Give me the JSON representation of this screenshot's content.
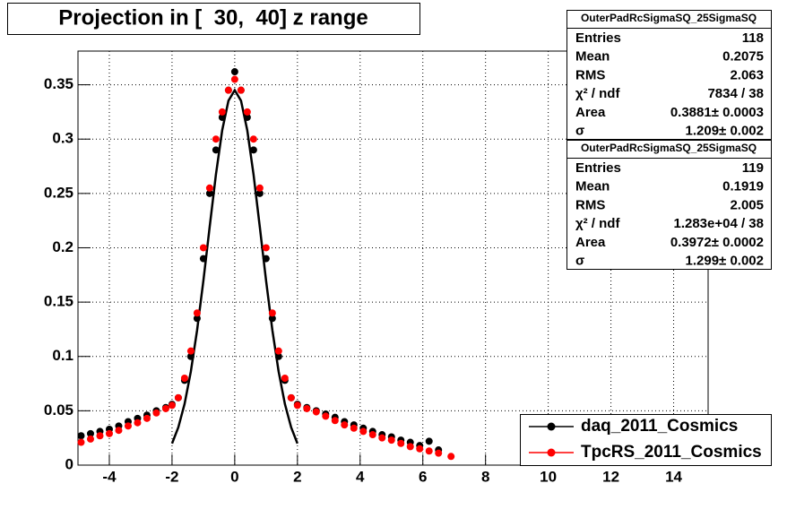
{
  "chart_data": {
    "type": "scatter",
    "title": "Projection in [  30,  40] z range",
    "xlim": [
      -5,
      15.1
    ],
    "ylim": [
      0,
      0.381
    ],
    "xticks": [
      -4,
      -2,
      0,
      2,
      4,
      6,
      8,
      10,
      12,
      14
    ],
    "yticks": [
      0,
      0.05,
      0.1,
      0.15,
      0.2,
      0.25,
      0.3,
      0.35
    ],
    "grid": true,
    "legend": "lower right",
    "series": [
      {
        "name": "daq_2011_Cosmics",
        "color": "#000000",
        "x": [
          -4.9,
          -4.6,
          -4.3,
          -4.0,
          -3.7,
          -3.4,
          -3.1,
          -2.8,
          -2.5,
          -2.2,
          -2.0,
          -1.8,
          -1.6,
          -1.4,
          -1.2,
          -1.0,
          -0.8,
          -0.6,
          -0.4,
          -0.2,
          0,
          0.2,
          0.4,
          0.6,
          0.8,
          1.0,
          1.2,
          1.4,
          1.6,
          1.8,
          2.0,
          2.3,
          2.6,
          2.9,
          3.2,
          3.5,
          3.8,
          4.1,
          4.4,
          4.7,
          5.0,
          5.3,
          5.6,
          5.9,
          6.2,
          6.5
        ],
        "values": [
          0.027,
          0.029,
          0.031,
          0.033,
          0.036,
          0.04,
          0.043,
          0.046,
          0.05,
          0.053,
          0.056,
          0.062,
          0.078,
          0.1,
          0.135,
          0.19,
          0.25,
          0.29,
          0.32,
          0.345,
          0.362,
          0.345,
          0.32,
          0.29,
          0.25,
          0.19,
          0.135,
          0.1,
          0.078,
          0.062,
          0.056,
          0.053,
          0.05,
          0.047,
          0.044,
          0.04,
          0.037,
          0.034,
          0.031,
          0.028,
          0.026,
          0.023,
          0.021,
          0.018,
          0.022,
          0.014
        ]
      },
      {
        "name": "TpcRS_2011_Cosmics",
        "color": "#ff0000",
        "x": [
          -4.9,
          -4.6,
          -4.3,
          -4.0,
          -3.7,
          -3.4,
          -3.1,
          -2.8,
          -2.5,
          -2.2,
          -2.0,
          -1.8,
          -1.6,
          -1.4,
          -1.2,
          -1.0,
          -0.8,
          -0.6,
          -0.4,
          -0.2,
          0,
          0.2,
          0.4,
          0.6,
          0.8,
          1.0,
          1.2,
          1.4,
          1.6,
          1.8,
          2.0,
          2.3,
          2.6,
          2.9,
          3.2,
          3.5,
          3.8,
          4.1,
          4.4,
          4.7,
          5.0,
          5.3,
          5.6,
          5.9,
          6.2,
          6.5,
          6.9
        ],
        "values": [
          0.021,
          0.024,
          0.027,
          0.029,
          0.032,
          0.036,
          0.039,
          0.043,
          0.048,
          0.052,
          0.055,
          0.062,
          0.08,
          0.105,
          0.14,
          0.2,
          0.255,
          0.3,
          0.325,
          0.345,
          0.355,
          0.345,
          0.325,
          0.3,
          0.255,
          0.2,
          0.14,
          0.105,
          0.08,
          0.062,
          0.055,
          0.052,
          0.049,
          0.045,
          0.041,
          0.037,
          0.034,
          0.031,
          0.028,
          0.025,
          0.023,
          0.02,
          0.017,
          0.015,
          0.013,
          0.011,
          0.008
        ]
      }
    ],
    "fit": {
      "color": "#000000",
      "x": [
        -2.0,
        -1.8,
        -1.6,
        -1.4,
        -1.2,
        -1.0,
        -0.8,
        -0.6,
        -0.4,
        -0.2,
        0,
        0.2,
        0.4,
        0.6,
        0.8,
        1.0,
        1.2,
        1.4,
        1.6,
        1.8,
        2.0
      ],
      "values": [
        0.0199,
        0.0347,
        0.0563,
        0.0861,
        0.1243,
        0.1697,
        0.2191,
        0.2674,
        0.3081,
        0.3354,
        0.345,
        0.3354,
        0.3081,
        0.2674,
        0.2191,
        0.1697,
        0.1243,
        0.0861,
        0.0563,
        0.0347,
        0.0199
      ]
    },
    "stats": [
      {
        "title": "OuterPadRcSigmaSQ_25SigmaSQ",
        "rows": [
          [
            "Entries",
            "118"
          ],
          [
            "Mean",
            "0.2075"
          ],
          [
            "RMS",
            "2.063"
          ],
          [
            "χ² / ndf",
            "7834 / 38"
          ],
          [
            "Area",
            "0.3881± 0.0003"
          ],
          [
            "σ",
            "1.209± 0.002"
          ]
        ]
      },
      {
        "title": "OuterPadRcSigmaSQ_25SigmaSQ",
        "rows": [
          [
            "Entries",
            "119"
          ],
          [
            "Mean",
            "0.1919"
          ],
          [
            "RMS",
            "2.005"
          ],
          [
            "χ² / ndf",
            "1.283e+04 / 38"
          ],
          [
            "Area",
            "0.3972± 0.0002"
          ],
          [
            "σ",
            "1.299± 0.002"
          ]
        ]
      }
    ]
  }
}
